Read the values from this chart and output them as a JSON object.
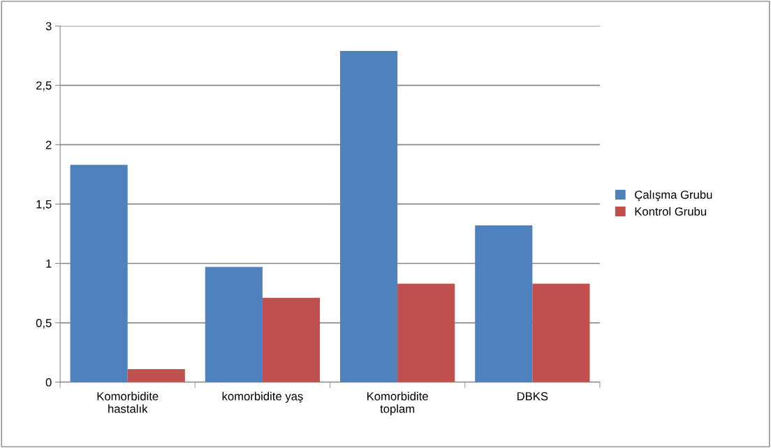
{
  "chart_data": {
    "type": "bar",
    "categories": [
      "Komorbidite\nhastalık",
      "komorbidite yaş",
      "Komorbidite\ntoplam",
      "DBKS"
    ],
    "series": [
      {
        "name": "Çalışma Grubu",
        "color": "#4f81bd",
        "values": [
          1.83,
          0.97,
          2.79,
          1.32
        ]
      },
      {
        "name": "Kontrol Grubu",
        "color": "#c0504d",
        "values": [
          0.11,
          0.71,
          0.83,
          0.83
        ]
      }
    ],
    "ylim": [
      0,
      3
    ],
    "yticks": [
      0,
      {
        "value": 0.5,
        "label": "0,5"
      },
      1,
      {
        "value": 1.5,
        "label": "1,5"
      },
      2,
      {
        "value": 2.5,
        "label": "2,5"
      },
      3
    ],
    "grid": "y",
    "legend": "right"
  }
}
